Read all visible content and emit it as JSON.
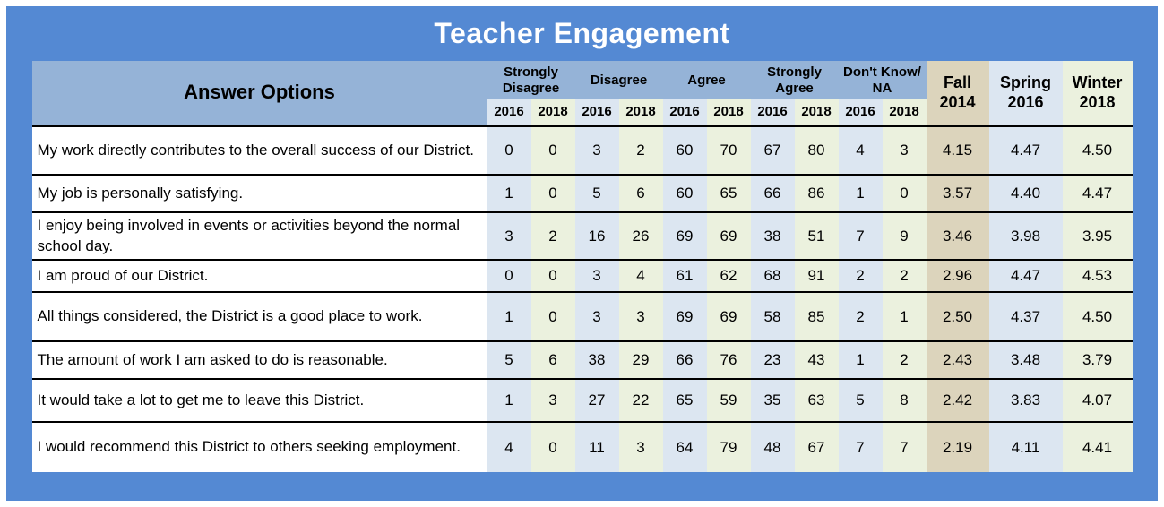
{
  "title": "Teacher Engagement",
  "colors": {
    "panel-blue": "#5489D3",
    "header-blue": "#95B3D7",
    "band-blue": "#DCE6F1",
    "band-cream": "#EBF1DE",
    "band-tan": "#DCD4BC",
    "row-line": "#000000",
    "title-text": "#FFFFFF"
  },
  "table": {
    "answer_options_label": "Answer Options",
    "groups": [
      {
        "label": "Strongly Disagree",
        "years": [
          "2016",
          "2018"
        ]
      },
      {
        "label": "Disagree",
        "years": [
          "2016",
          "2018"
        ]
      },
      {
        "label": "Agree",
        "years": [
          "2016",
          "2018"
        ]
      },
      {
        "label": "Strongly Agree",
        "years": [
          "2016",
          "2018"
        ]
      },
      {
        "label": "Don't Know/ NA",
        "years": [
          "2016",
          "2018"
        ]
      }
    ],
    "summary_columns": [
      "Fall 2014",
      "Spring 2016",
      "Winter 2018"
    ],
    "rows": [
      {
        "question": "My work directly contributes to the overall success of our District.",
        "values": [
          0,
          0,
          3,
          2,
          60,
          70,
          67,
          80,
          4,
          3,
          "4.15",
          "4.47",
          "4.50"
        ]
      },
      {
        "question": "My job is personally satisfying.",
        "values": [
          1,
          0,
          5,
          6,
          60,
          65,
          66,
          86,
          1,
          0,
          "3.57",
          "4.40",
          "4.47"
        ]
      },
      {
        "question": "I enjoy being involved in events or activities beyond the normal school day.",
        "values": [
          3,
          2,
          16,
          26,
          69,
          69,
          38,
          51,
          7,
          9,
          "3.46",
          "3.98",
          "3.95"
        ]
      },
      {
        "question": "I am proud of our District.",
        "values": [
          0,
          0,
          3,
          4,
          61,
          62,
          68,
          91,
          2,
          2,
          "2.96",
          "4.47",
          "4.53"
        ]
      },
      {
        "question": "All things considered, the District is a good place to work.",
        "values": [
          1,
          0,
          3,
          3,
          69,
          69,
          58,
          85,
          2,
          1,
          "2.50",
          "4.37",
          "4.50"
        ]
      },
      {
        "question": "The amount of work I am asked to do is reasonable.",
        "values": [
          5,
          6,
          38,
          29,
          66,
          76,
          23,
          43,
          1,
          2,
          "2.43",
          "3.48",
          "3.79"
        ]
      },
      {
        "question": "It would take a lot to get me to leave this District.",
        "values": [
          1,
          3,
          27,
          22,
          65,
          59,
          35,
          63,
          5,
          8,
          "2.42",
          "3.83",
          "4.07"
        ]
      },
      {
        "question": "I would recommend this District to others seeking employment.",
        "values": [
          4,
          0,
          11,
          3,
          64,
          79,
          48,
          67,
          7,
          7,
          "2.19",
          "4.11",
          "4.41"
        ]
      }
    ]
  },
  "chart_data": {
    "type": "table",
    "title": "Teacher Engagement",
    "columns": [
      "Answer Options",
      "Strongly Disagree 2016",
      "Strongly Disagree 2018",
      "Disagree 2016",
      "Disagree 2018",
      "Agree 2016",
      "Agree 2018",
      "Strongly Agree 2016",
      "Strongly Agree 2018",
      "Don't Know/ NA 2016",
      "Don't Know/ NA 2018",
      "Fall 2014",
      "Spring 2016",
      "Winter 2018"
    ],
    "rows": [
      [
        "My work directly contributes to the overall success of our District.",
        0,
        0,
        3,
        2,
        60,
        70,
        67,
        80,
        4,
        3,
        4.15,
        4.47,
        4.5
      ],
      [
        "My job is personally satisfying.",
        1,
        0,
        5,
        6,
        60,
        65,
        66,
        86,
        1,
        0,
        3.57,
        4.4,
        4.47
      ],
      [
        "I enjoy being involved in events or activities beyond the normal school day.",
        3,
        2,
        16,
        26,
        69,
        69,
        38,
        51,
        7,
        9,
        3.46,
        3.98,
        3.95
      ],
      [
        "I am proud of our District.",
        0,
        0,
        3,
        4,
        61,
        62,
        68,
        91,
        2,
        2,
        2.96,
        4.47,
        4.53
      ],
      [
        "All things considered, the District is a good place to work.",
        1,
        0,
        3,
        3,
        69,
        69,
        58,
        85,
        2,
        1,
        2.5,
        4.37,
        4.5
      ],
      [
        "The amount of work I am asked to do is reasonable.",
        5,
        6,
        38,
        29,
        66,
        76,
        23,
        43,
        1,
        2,
        2.43,
        3.48,
        3.79
      ],
      [
        "It would take a lot to get me to leave this District.",
        1,
        3,
        27,
        22,
        65,
        59,
        35,
        63,
        5,
        8,
        2.42,
        3.83,
        4.07
      ],
      [
        "I would recommend this District to others seeking employment.",
        4,
        0,
        11,
        3,
        64,
        79,
        48,
        67,
        7,
        7,
        2.19,
        4.11,
        4.41
      ]
    ]
  }
}
